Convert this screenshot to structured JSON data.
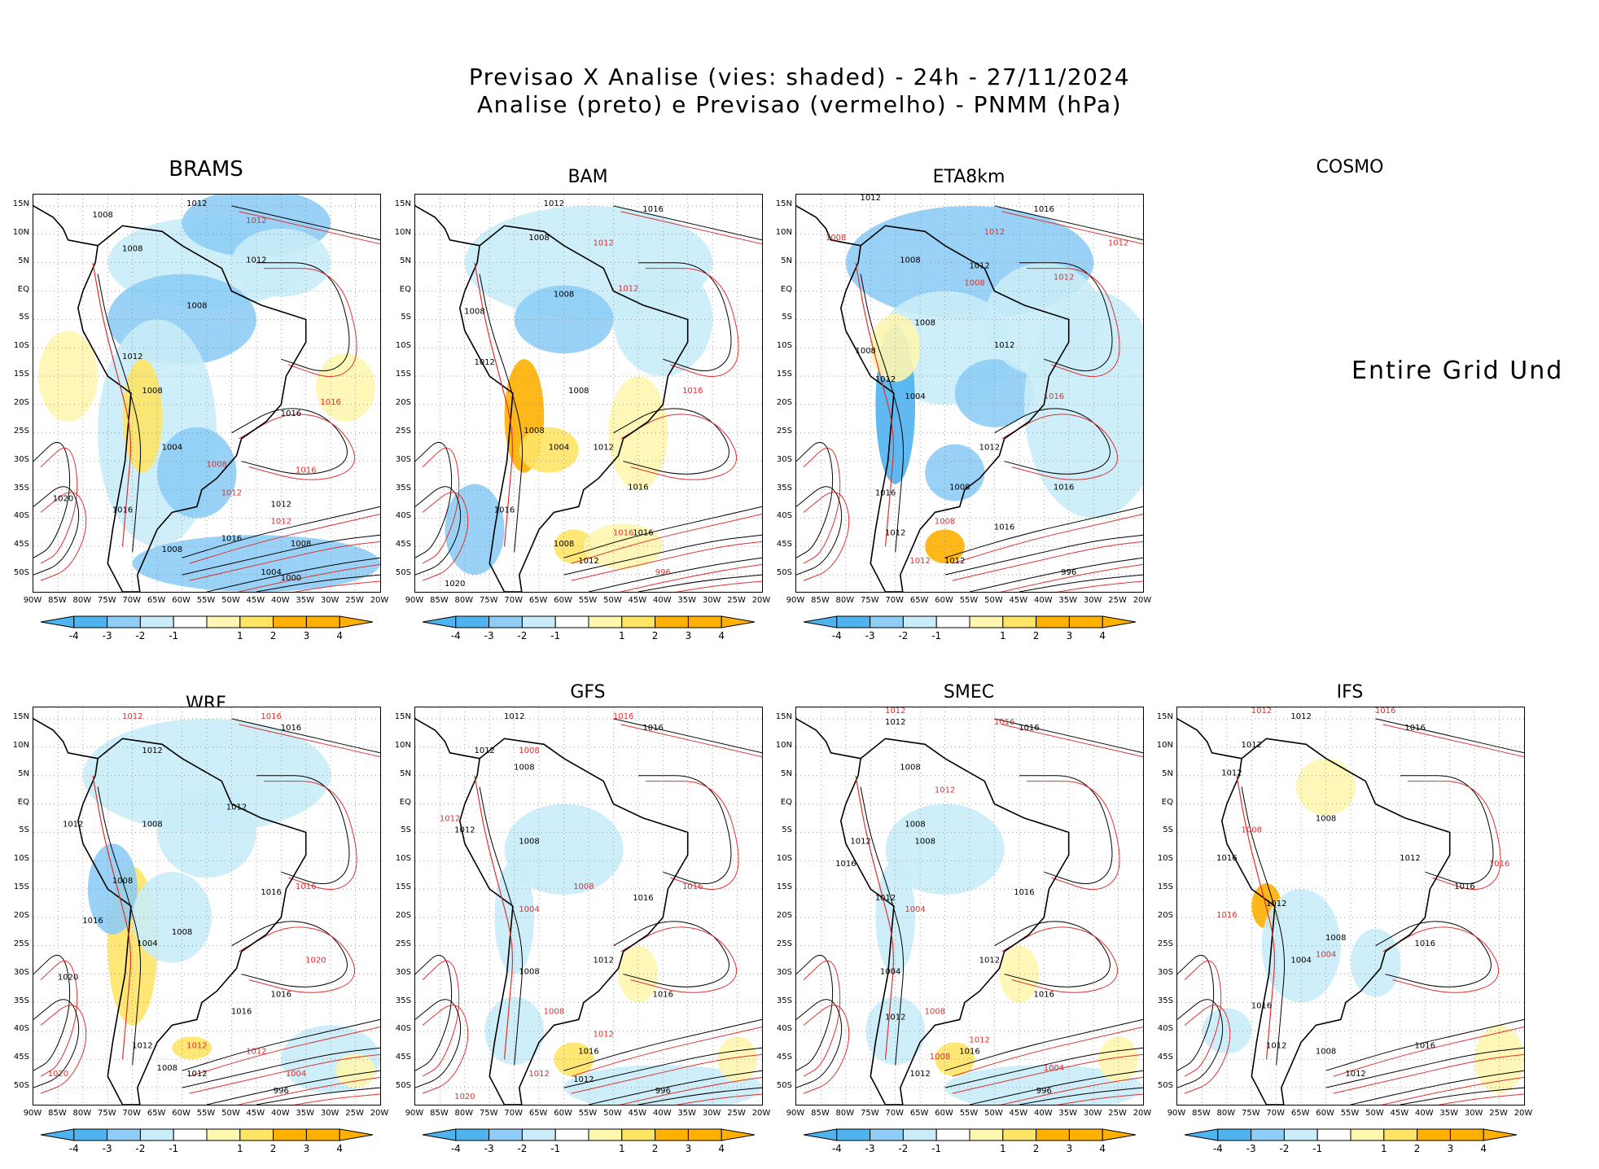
{
  "title": {
    "line1": "Previsao X Analise (vies: shaded) - 24h - 27/11/2024",
    "line2": "Analise (preto) e Previsao (vermelho) - PNMM (hPa)"
  },
  "colors": {
    "neg_strong": "#4fb3f0",
    "neg_mid": "#8ecdf5",
    "neg_weak": "#c9ecf8",
    "pos_weak": "#fff6b0",
    "pos_mid": "#ffe466",
    "pos_strong": "#ffb000",
    "analysis_contour": "#000000",
    "forecast_contour": "#e0302e"
  },
  "lat_labels": [
    "15N",
    "10N",
    "5N",
    "EQ",
    "5S",
    "10S",
    "15S",
    "20S",
    "25S",
    "30S",
    "35S",
    "40S",
    "45S",
    "50S"
  ],
  "lon_labels": [
    "90W",
    "85W",
    "80W",
    "75W",
    "70W",
    "65W",
    "60W",
    "55W",
    "50W",
    "45W",
    "40W",
    "35W",
    "30W",
    "25W",
    "20W"
  ],
  "colorbar_ticks": [
    "-4",
    "-3",
    "-2",
    "-1",
    "1",
    "2",
    "3",
    "4"
  ],
  "undefined_message": "Entire Grid Und",
  "panels": [
    {
      "name": "BRAMS",
      "style": "dry-blue",
      "labels": [
        {
          "t": "1008",
          "c": "k",
          "x": -76,
          "y": 13
        },
        {
          "t": "1012",
          "c": "k",
          "x": -57,
          "y": 15
        },
        {
          "t": "1012",
          "c": "r",
          "x": -45,
          "y": 12
        },
        {
          "t": "1008",
          "c": "k",
          "x": -70,
          "y": 7
        },
        {
          "t": "1012",
          "c": "k",
          "x": -45,
          "y": 5
        },
        {
          "t": "1008",
          "c": "k",
          "x": -57,
          "y": -3
        },
        {
          "t": "1012",
          "c": "k",
          "x": -70,
          "y": -12
        },
        {
          "t": "1008",
          "c": "k",
          "x": -66,
          "y": -18
        },
        {
          "t": "1004",
          "c": "k",
          "x": -62,
          "y": -28
        },
        {
          "t": "1008",
          "c": "r",
          "x": -53,
          "y": -31
        },
        {
          "t": "1016",
          "c": "k",
          "x": -38,
          "y": -22
        },
        {
          "t": "1016",
          "c": "r",
          "x": -30,
          "y": -20
        },
        {
          "t": "1016",
          "c": "r",
          "x": -35,
          "y": -32
        },
        {
          "t": "1012",
          "c": "k",
          "x": -40,
          "y": -38
        },
        {
          "t": "1012",
          "c": "r",
          "x": -50,
          "y": -36
        },
        {
          "t": "1020",
          "c": "k",
          "x": -84,
          "y": -37
        },
        {
          "t": "1016",
          "c": "k",
          "x": -72,
          "y": -39
        },
        {
          "t": "1008",
          "c": "k",
          "x": -62,
          "y": -46
        },
        {
          "t": "1016",
          "c": "k",
          "x": -50,
          "y": -44
        },
        {
          "t": "1004",
          "c": "k",
          "x": -42,
          "y": -50
        },
        {
          "t": "1000",
          "c": "k",
          "x": -38,
          "y": -51
        },
        {
          "t": "1008",
          "c": "k",
          "x": -36,
          "y": -45
        },
        {
          "t": "1012",
          "c": "r",
          "x": -40,
          "y": -41
        }
      ]
    },
    {
      "name": "BAM",
      "style": "mixed",
      "labels": [
        {
          "t": "1012",
          "c": "k",
          "x": -62,
          "y": 15
        },
        {
          "t": "1016",
          "c": "k",
          "x": -42,
          "y": 14
        },
        {
          "t": "1012",
          "c": "r",
          "x": -52,
          "y": 8
        },
        {
          "t": "1008",
          "c": "k",
          "x": -65,
          "y": 9
        },
        {
          "t": "1012",
          "c": "r",
          "x": -47,
          "y": 0
        },
        {
          "t": "1008",
          "c": "k",
          "x": -60,
          "y": -1
        },
        {
          "t": "1008",
          "c": "k",
          "x": -78,
          "y": -4
        },
        {
          "t": "1012",
          "c": "k",
          "x": -76,
          "y": -13
        },
        {
          "t": "1008",
          "c": "k",
          "x": -57,
          "y": -18
        },
        {
          "t": "1016",
          "c": "r",
          "x": -34,
          "y": -18
        },
        {
          "t": "1008",
          "c": "k",
          "x": -66,
          "y": -25
        },
        {
          "t": "1004",
          "c": "k",
          "x": -61,
          "y": -28
        },
        {
          "t": "1012",
          "c": "k",
          "x": -52,
          "y": -28
        },
        {
          "t": "1016",
          "c": "k",
          "x": -45,
          "y": -35
        },
        {
          "t": "1016",
          "c": "k",
          "x": -72,
          "y": -39
        },
        {
          "t": "1016",
          "c": "r",
          "x": -48,
          "y": -43
        },
        {
          "t": "1016",
          "c": "k",
          "x": -44,
          "y": -43
        },
        {
          "t": "1008",
          "c": "k",
          "x": -60,
          "y": -45
        },
        {
          "t": "1012",
          "c": "k",
          "x": -55,
          "y": -48
        },
        {
          "t": "1020",
          "c": "k",
          "x": -82,
          "y": -52
        },
        {
          "t": "996",
          "c": "r",
          "x": -40,
          "y": -50
        }
      ]
    },
    {
      "name": "ETA8km",
      "style": "wet-blue",
      "labels": [
        {
          "t": "1012",
          "c": "k",
          "x": -75,
          "y": 16
        },
        {
          "t": "1016",
          "c": "k",
          "x": -40,
          "y": 14
        },
        {
          "t": "1012",
          "c": "r",
          "x": -50,
          "y": 10
        },
        {
          "t": "1012",
          "c": "r",
          "x": -25,
          "y": 8
        },
        {
          "t": "1008",
          "c": "r",
          "x": -82,
          "y": 9
        },
        {
          "t": "1008",
          "c": "k",
          "x": -67,
          "y": 5
        },
        {
          "t": "1012",
          "c": "k",
          "x": -53,
          "y": 4
        },
        {
          "t": "1008",
          "c": "r",
          "x": -54,
          "y": 1
        },
        {
          "t": "1012",
          "c": "r",
          "x": -36,
          "y": 2
        },
        {
          "t": "1008",
          "c": "k",
          "x": -64,
          "y": -6
        },
        {
          "t": "1012",
          "c": "k",
          "x": -48,
          "y": -10
        },
        {
          "t": "1008",
          "c": "k",
          "x": -76,
          "y": -11
        },
        {
          "t": "1012",
          "c": "k",
          "x": -72,
          "y": -16
        },
        {
          "t": "1004",
          "c": "k",
          "x": -66,
          "y": -19
        },
        {
          "t": "1016",
          "c": "r",
          "x": -38,
          "y": -19
        },
        {
          "t": "1012",
          "c": "k",
          "x": -51,
          "y": -28
        },
        {
          "t": "1016",
          "c": "k",
          "x": -36,
          "y": -35
        },
        {
          "t": "1016",
          "c": "k",
          "x": -72,
          "y": -36
        },
        {
          "t": "1008",
          "c": "k",
          "x": -57,
          "y": -35
        },
        {
          "t": "1016",
          "c": "k",
          "x": -48,
          "y": -42
        },
        {
          "t": "1012",
          "c": "k",
          "x": -70,
          "y": -43
        },
        {
          "t": "1008",
          "c": "r",
          "x": -60,
          "y": -41
        },
        {
          "t": "1012",
          "c": "r",
          "x": -65,
          "y": -48
        },
        {
          "t": "1012",
          "c": "k",
          "x": -58,
          "y": -48
        },
        {
          "t": "996",
          "c": "k",
          "x": -35,
          "y": -50
        }
      ]
    },
    {
      "name": "COSMO",
      "style": "undefined",
      "labels": []
    },
    {
      "name": "WRF",
      "style": "mixed-wet",
      "labels": [
        {
          "t": "1012",
          "c": "r",
          "x": -70,
          "y": 15
        },
        {
          "t": "1016",
          "c": "r",
          "x": -42,
          "y": 15
        },
        {
          "t": "1016",
          "c": "k",
          "x": -38,
          "y": 13
        },
        {
          "t": "1012",
          "c": "k",
          "x": -66,
          "y": 9
        },
        {
          "t": "1012",
          "c": "k",
          "x": -49,
          "y": -1
        },
        {
          "t": "1008",
          "c": "k",
          "x": -66,
          "y": -4
        },
        {
          "t": "1012",
          "c": "k",
          "x": -82,
          "y": -4
        },
        {
          "t": "1008",
          "c": "k",
          "x": -72,
          "y": -14
        },
        {
          "t": "1016",
          "c": "k",
          "x": -42,
          "y": -16
        },
        {
          "t": "1016",
          "c": "r",
          "x": -35,
          "y": -15
        },
        {
          "t": "1016",
          "c": "k",
          "x": -78,
          "y": -21
        },
        {
          "t": "1004",
          "c": "k",
          "x": -67,
          "y": -25
        },
        {
          "t": "1008",
          "c": "k",
          "x": -60,
          "y": -23
        },
        {
          "t": "1020",
          "c": "r",
          "x": -33,
          "y": -28
        },
        {
          "t": "1020",
          "c": "k",
          "x": -83,
          "y": -31
        },
        {
          "t": "1016",
          "c": "k",
          "x": -40,
          "y": -34
        },
        {
          "t": "1016",
          "c": "k",
          "x": -48,
          "y": -37
        },
        {
          "t": "1012",
          "c": "k",
          "x": -68,
          "y": -43
        },
        {
          "t": "1012",
          "c": "r",
          "x": -57,
          "y": -43
        },
        {
          "t": "1012",
          "c": "r",
          "x": -45,
          "y": -44
        },
        {
          "t": "1008",
          "c": "k",
          "x": -63,
          "y": -47
        },
        {
          "t": "1012",
          "c": "k",
          "x": -57,
          "y": -48
        },
        {
          "t": "1004",
          "c": "r",
          "x": -37,
          "y": -48
        },
        {
          "t": "996",
          "c": "k",
          "x": -40,
          "y": -51
        },
        {
          "t": "1020",
          "c": "r",
          "x": -85,
          "y": -48
        }
      ]
    },
    {
      "name": "GFS",
      "style": "mixed-light",
      "labels": [
        {
          "t": "1012",
          "c": "k",
          "x": -70,
          "y": 15
        },
        {
          "t": "1016",
          "c": "r",
          "x": -48,
          "y": 15
        },
        {
          "t": "1016",
          "c": "k",
          "x": -42,
          "y": 13
        },
        {
          "t": "1012",
          "c": "k",
          "x": -76,
          "y": 9
        },
        {
          "t": "1008",
          "c": "r",
          "x": -67,
          "y": 9
        },
        {
          "t": "1008",
          "c": "k",
          "x": -68,
          "y": 6
        },
        {
          "t": "1012",
          "c": "r",
          "x": -83,
          "y": -3
        },
        {
          "t": "1012",
          "c": "k",
          "x": -80,
          "y": -5
        },
        {
          "t": "1008",
          "c": "k",
          "x": -67,
          "y": -7
        },
        {
          "t": "1008",
          "c": "r",
          "x": -56,
          "y": -15
        },
        {
          "t": "1016",
          "c": "r",
          "x": -34,
          "y": -15
        },
        {
          "t": "1016",
          "c": "k",
          "x": -44,
          "y": -17
        },
        {
          "t": "1004",
          "c": "r",
          "x": -67,
          "y": -19
        },
        {
          "t": "1012",
          "c": "k",
          "x": -52,
          "y": -28
        },
        {
          "t": "1016",
          "c": "k",
          "x": -40,
          "y": -34
        },
        {
          "t": "1008",
          "c": "k",
          "x": -67,
          "y": -30
        },
        {
          "t": "1008",
          "c": "r",
          "x": -62,
          "y": -37
        },
        {
          "t": "1016",
          "c": "k",
          "x": -55,
          "y": -44
        },
        {
          "t": "1012",
          "c": "r",
          "x": -52,
          "y": -41
        },
        {
          "t": "1012",
          "c": "r",
          "x": -65,
          "y": -48
        },
        {
          "t": "1012",
          "c": "k",
          "x": -56,
          "y": -49
        },
        {
          "t": "996",
          "c": "k",
          "x": -40,
          "y": -51
        },
        {
          "t": "1020",
          "c": "r",
          "x": -80,
          "y": -52
        }
      ]
    },
    {
      "name": "SMEC",
      "style": "mixed-light",
      "labels": [
        {
          "t": "1012",
          "c": "r",
          "x": -70,
          "y": 16
        },
        {
          "t": "1012",
          "c": "k",
          "x": -70,
          "y": 14
        },
        {
          "t": "1016",
          "c": "r",
          "x": -48,
          "y": 14
        },
        {
          "t": "1016",
          "c": "k",
          "x": -43,
          "y": 13
        },
        {
          "t": "1012",
          "c": "r",
          "x": -60,
          "y": 2
        },
        {
          "t": "1008",
          "c": "k",
          "x": -67,
          "y": 6
        },
        {
          "t": "1008",
          "c": "k",
          "x": -66,
          "y": -4
        },
        {
          "t": "1008",
          "c": "k",
          "x": -64,
          "y": -7
        },
        {
          "t": "1012",
          "c": "k",
          "x": -77,
          "y": -7
        },
        {
          "t": "1016",
          "c": "k",
          "x": -80,
          "y": -11
        },
        {
          "t": "1016",
          "c": "k",
          "x": -44,
          "y": -16
        },
        {
          "t": "1012",
          "c": "k",
          "x": -72,
          "y": -17
        },
        {
          "t": "1004",
          "c": "r",
          "x": -66,
          "y": -19
        },
        {
          "t": "1012",
          "c": "k",
          "x": -51,
          "y": -28
        },
        {
          "t": "1016",
          "c": "k",
          "x": -40,
          "y": -34
        },
        {
          "t": "1004",
          "c": "k",
          "x": -71,
          "y": -30
        },
        {
          "t": "1012",
          "c": "k",
          "x": -70,
          "y": -38
        },
        {
          "t": "1008",
          "c": "r",
          "x": -62,
          "y": -37
        },
        {
          "t": "1016",
          "c": "k",
          "x": -55,
          "y": -44
        },
        {
          "t": "1012",
          "c": "r",
          "x": -53,
          "y": -42
        },
        {
          "t": "1008",
          "c": "r",
          "x": -61,
          "y": -45
        },
        {
          "t": "1012",
          "c": "k",
          "x": -65,
          "y": -48
        },
        {
          "t": "996",
          "c": "k",
          "x": -40,
          "y": -51
        },
        {
          "t": "1004",
          "c": "r",
          "x": -38,
          "y": -47
        }
      ]
    },
    {
      "name": "IFS",
      "style": "yellow-light",
      "labels": [
        {
          "t": "1012",
          "c": "r",
          "x": -73,
          "y": 16
        },
        {
          "t": "1012",
          "c": "k",
          "x": -65,
          "y": 15
        },
        {
          "t": "1016",
          "c": "r",
          "x": -48,
          "y": 16
        },
        {
          "t": "1016",
          "c": "k",
          "x": -42,
          "y": 13
        },
        {
          "t": "1012",
          "c": "k",
          "x": -75,
          "y": 10
        },
        {
          "t": "1012",
          "c": "k",
          "x": -79,
          "y": 5
        },
        {
          "t": "1008",
          "c": "k",
          "x": -60,
          "y": -3
        },
        {
          "t": "1008",
          "c": "r",
          "x": -75,
          "y": -5
        },
        {
          "t": "1016",
          "c": "k",
          "x": -80,
          "y": -10
        },
        {
          "t": "1012",
          "c": "k",
          "x": -43,
          "y": -10
        },
        {
          "t": "1016",
          "c": "r",
          "x": -25,
          "y": -11
        },
        {
          "t": "1016",
          "c": "k",
          "x": -32,
          "y": -15
        },
        {
          "t": "1012",
          "c": "k",
          "x": -70,
          "y": -18
        },
        {
          "t": "1016",
          "c": "r",
          "x": -80,
          "y": -20
        },
        {
          "t": "1008",
          "c": "k",
          "x": -58,
          "y": -24
        },
        {
          "t": "1004",
          "c": "k",
          "x": -65,
          "y": -28
        },
        {
          "t": "1004",
          "c": "r",
          "x": -60,
          "y": -27
        },
        {
          "t": "1016",
          "c": "k",
          "x": -40,
          "y": -25
        },
        {
          "t": "1016",
          "c": "k",
          "x": -73,
          "y": -36
        },
        {
          "t": "1016",
          "c": "k",
          "x": -40,
          "y": -43
        },
        {
          "t": "1012",
          "c": "k",
          "x": -70,
          "y": -43
        },
        {
          "t": "1008",
          "c": "k",
          "x": -60,
          "y": -44
        },
        {
          "t": "1012",
          "c": "k",
          "x": -54,
          "y": -48
        }
      ]
    }
  ]
}
